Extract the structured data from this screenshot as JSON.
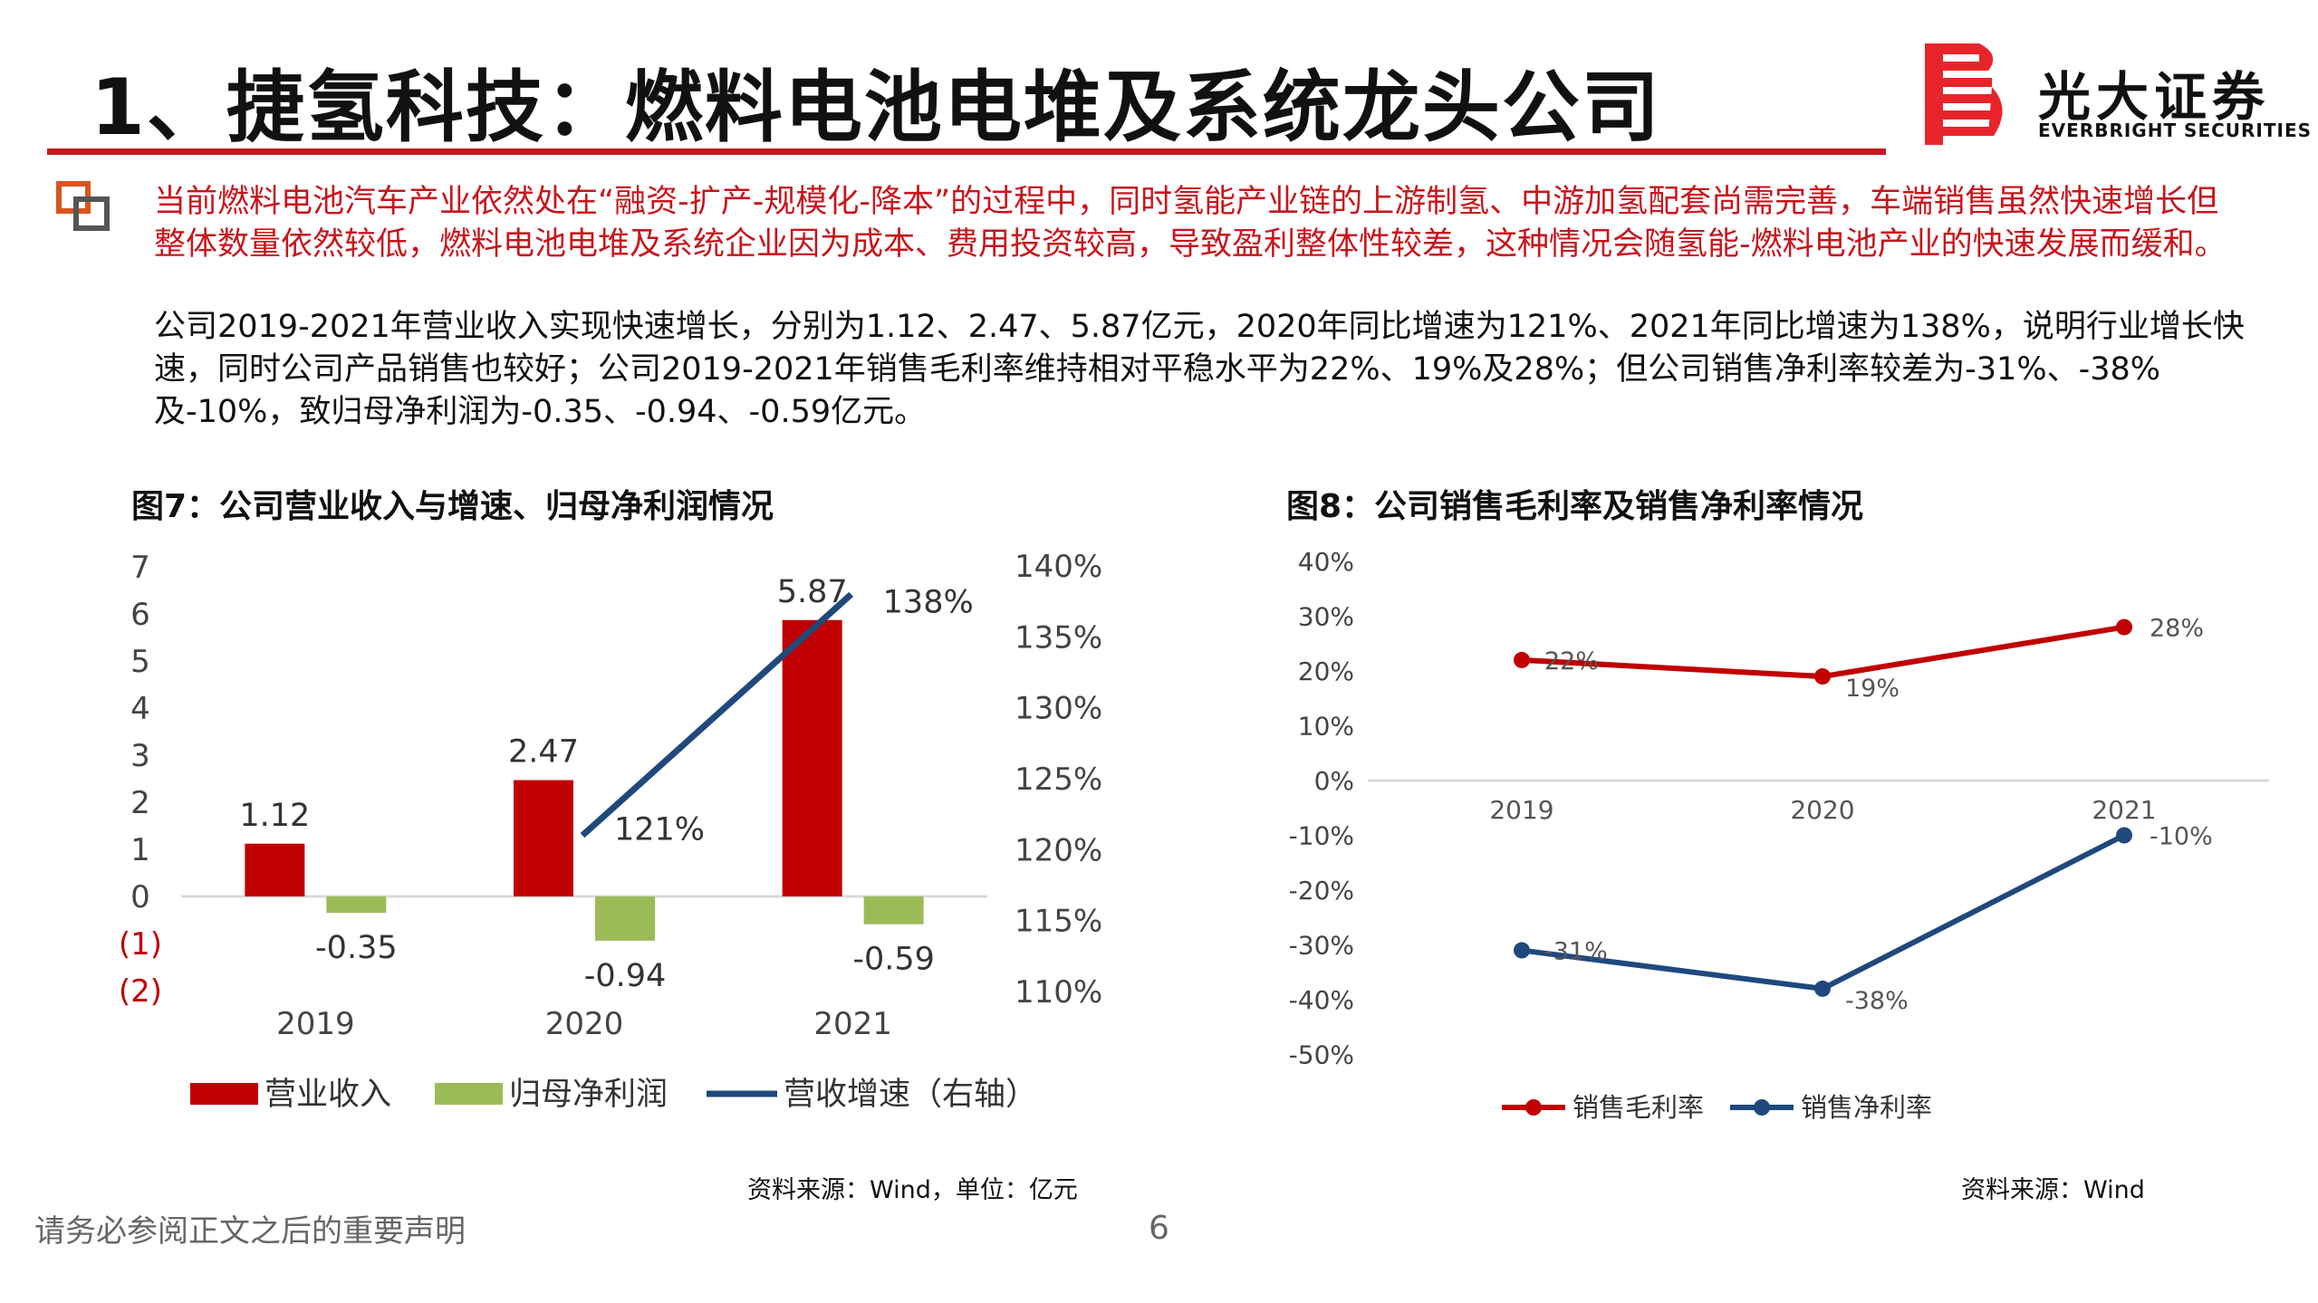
{
  "header": {
    "title": "1、捷氢科技：燃料电池电堆及系统龙头公司",
    "brand_cn": "光大证券",
    "brand_en": "EVERBRIGHT SECURITIES",
    "accent_color": "#c8161d"
  },
  "body": {
    "bullet_icon": "square-bullet-icon",
    "para_red": "当前燃料电池汽车产业依然处在“融资-扩产-规模化-降本”的过程中，同时氢能产业链的上游制氢、中游加氢配套尚需完善，车端销售虽然快速增长但整体数量依然较低，燃料电池电堆及系统企业因为成本、费用投资较高，导致盈利整体性较差，这种情况会随氢能-燃料电池产业的快速发展而缓和。",
    "para_black": "公司2019-2021年营业收入实现快速增长，分别为1.12、2.47、5.87亿元，2020年同比增速为121%、2021年同比增速为138%，说明行业增长快速，同时公司产品销售也较好；公司2019-2021年销售毛利率维持相对平稳水平为22%、19%及28%；但公司销售净利率较差为-31%、-38%及-10%，致归母净利润为-0.35、-0.94、-0.59亿元。"
  },
  "chart7": {
    "title": "图7：公司营业收入与增速、归母净利润情况",
    "source": "资料来源：Wind，单位：亿元"
  },
  "chart8": {
    "title": "图8：公司销售毛利率及销售净利率情况",
    "source": "资料来源：Wind"
  },
  "footer": {
    "disclaimer": "请务必参阅正文之后的重要声明",
    "page": "6"
  },
  "chart_data": [
    {
      "type": "bar",
      "title": "图7：公司营业收入与增速、归母净利润情况",
      "categories": [
        "2019",
        "2020",
        "2021"
      ],
      "left_ticks": [
        "7",
        "6",
        "5",
        "4",
        "3",
        "2",
        "1",
        "0",
        "(1)",
        "(2)"
      ],
      "right_ticks": [
        "140%",
        "135%",
        "130%",
        "125%",
        "120%",
        "115%",
        "110%"
      ],
      "ylim": [
        -2,
        7
      ],
      "y2lim": [
        110,
        140
      ],
      "series": [
        {
          "name": "营业收入",
          "kind": "bar",
          "color": "#c00000",
          "values": [
            1.12,
            2.47,
            5.87
          ],
          "labels": [
            "1.12",
            "2.47",
            "5.87"
          ]
        },
        {
          "name": "归母净利润",
          "kind": "bar",
          "color": "#9bbb59",
          "values": [
            -0.35,
            -0.94,
            -0.59
          ],
          "labels": [
            "-0.35",
            "-0.94",
            "-0.59"
          ]
        },
        {
          "name": "营收增速（右轴）",
          "kind": "line",
          "axis": "right",
          "color": "#1f497d",
          "x": [
            "2020",
            "2021"
          ],
          "values": [
            121,
            138
          ],
          "labels": [
            "121%",
            "138%"
          ]
        }
      ],
      "legend": "bottom"
    },
    {
      "type": "line",
      "title": "图8：公司销售毛利率及销售净利率情况",
      "categories": [
        "2019",
        "2020",
        "2021"
      ],
      "ticks": [
        "40%",
        "30%",
        "20%",
        "10%",
        "0%",
        "-10%",
        "-20%",
        "-30%",
        "-40%",
        "-50%"
      ],
      "ylim": [
        -50,
        40
      ],
      "series": [
        {
          "name": "销售毛利率",
          "color": "#c00000",
          "values": [
            22,
            19,
            28
          ],
          "labels": [
            "22%",
            "19%",
            "28%"
          ]
        },
        {
          "name": "销售净利率",
          "color": "#1f497d",
          "values": [
            -31,
            -38,
            -10
          ],
          "labels": [
            "-31%",
            "-38%",
            "-10%"
          ]
        }
      ],
      "legend": "bottom"
    }
  ]
}
